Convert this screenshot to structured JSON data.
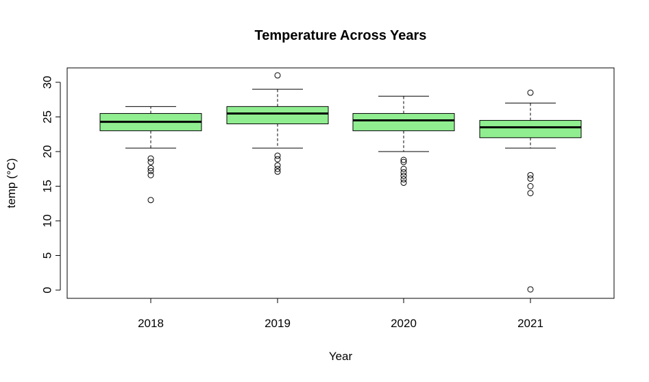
{
  "chart_data": {
    "type": "boxplot",
    "title": "Temperature Across Years",
    "xlabel": "Year",
    "ylabel": "temp (°C)",
    "ylim": [
      0,
      30
    ],
    "yticks": [
      0,
      5,
      10,
      15,
      20,
      25,
      30
    ],
    "categories": [
      "2018",
      "2019",
      "2020",
      "2021"
    ],
    "box_color": "#90EE90",
    "grid": false,
    "legend": "none",
    "boxes": [
      {
        "category": "2018",
        "whisker_low": 20.5,
        "q1": 23.0,
        "median": 24.3,
        "q3": 25.5,
        "whisker_high": 26.5,
        "outliers": [
          19.0,
          18.5,
          17.6,
          17.2,
          16.6,
          13.0
        ]
      },
      {
        "category": "2019",
        "whisker_low": 20.5,
        "q1": 24.0,
        "median": 25.5,
        "q3": 26.5,
        "whisker_high": 29.0,
        "outliers": [
          31.0,
          19.4,
          18.9,
          18.0,
          17.5,
          17.1
        ]
      },
      {
        "category": "2020",
        "whisker_low": 20.0,
        "q1": 23.0,
        "median": 24.5,
        "q3": 25.5,
        "whisker_high": 28.0,
        "outliers": [
          18.8,
          18.5,
          17.5,
          17.0,
          16.5,
          16.0,
          15.5
        ]
      },
      {
        "category": "2021",
        "whisker_low": 20.5,
        "q1": 22.0,
        "median": 23.5,
        "q3": 24.5,
        "whisker_high": 27.0,
        "outliers": [
          28.5,
          16.6,
          16.1,
          15.0,
          14.0,
          0.1
        ]
      }
    ]
  }
}
